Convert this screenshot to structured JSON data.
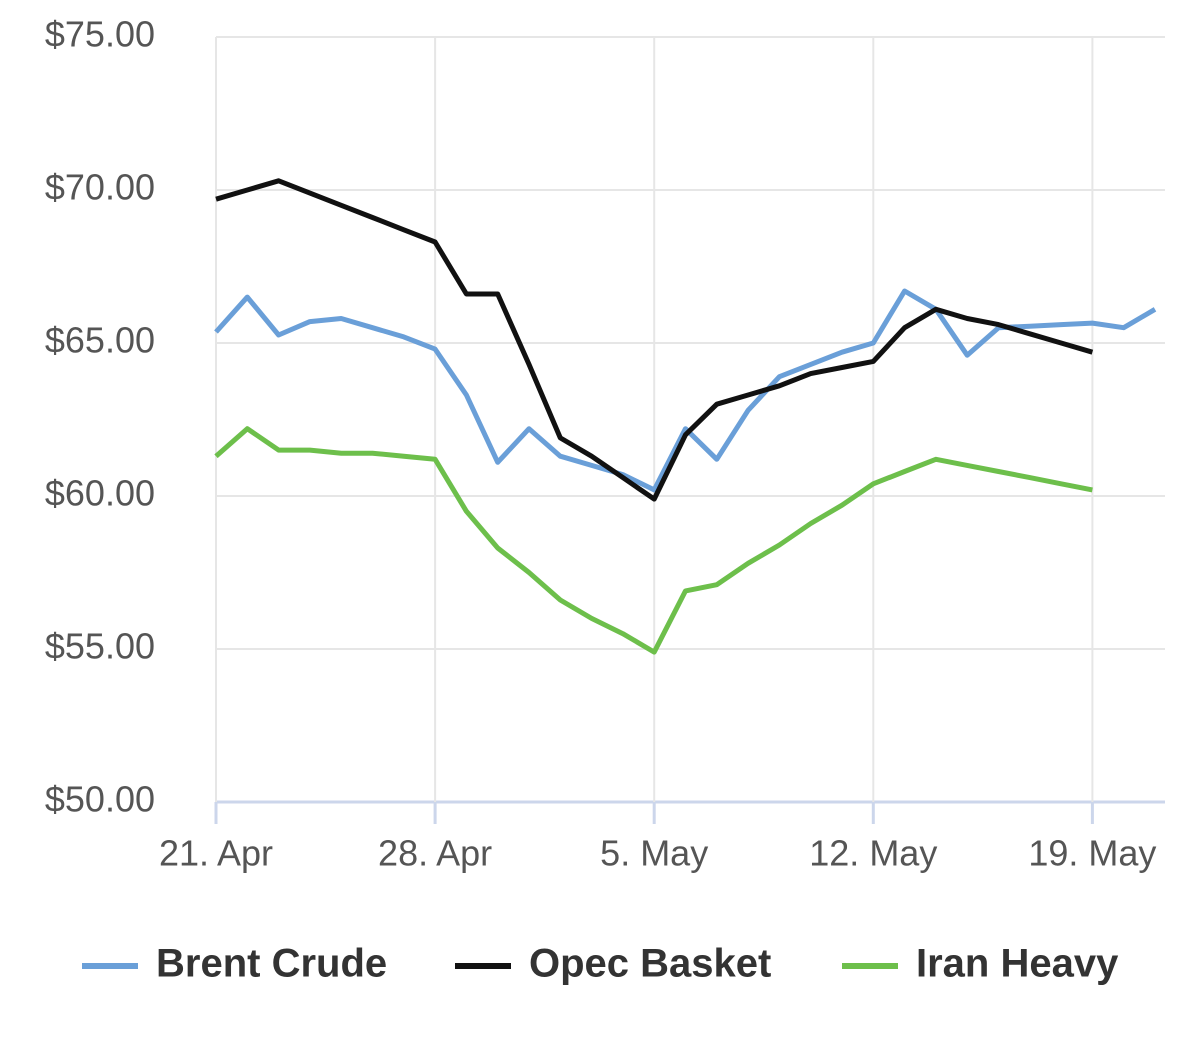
{
  "chart_data": {
    "type": "line",
    "categories": [
      "21. Apr",
      null,
      null,
      null,
      null,
      null,
      null,
      "28. Apr",
      null,
      null,
      null,
      null,
      null,
      null,
      "5. May",
      null,
      null,
      null,
      null,
      null,
      null,
      "12. May",
      null,
      null,
      null,
      null,
      null,
      null,
      "19. May",
      null,
      null
    ],
    "series": [
      {
        "name": "Brent Crude",
        "color": "#6a9fd8",
        "values": [
          65.36,
          66.5,
          65.26,
          65.7,
          65.8,
          65.5,
          65.2,
          64.8,
          63.3,
          61.1,
          62.2,
          61.3,
          61.0,
          60.7,
          60.2,
          62.2,
          61.2,
          62.8,
          63.9,
          64.3,
          64.7,
          65.0,
          66.7,
          66.1,
          64.6,
          65.5,
          65.55,
          65.6,
          65.65,
          65.5,
          66.1
        ]
      },
      {
        "name": "Opec Basket",
        "color": "#111111",
        "values": [
          69.7,
          70.0,
          70.3,
          69.9,
          69.5,
          69.1,
          68.7,
          68.3,
          66.6,
          66.6,
          64.3,
          61.9,
          61.3,
          60.6,
          59.9,
          62.0,
          63.0,
          63.3,
          63.6,
          64.0,
          64.2,
          64.4,
          65.5,
          66.1,
          65.8,
          65.6,
          65.3,
          65.0,
          64.7,
          null,
          null
        ]
      },
      {
        "name": "Iran Heavy",
        "color": "#6dbf4b",
        "values": [
          61.3,
          62.2,
          61.5,
          61.5,
          61.4,
          61.4,
          61.3,
          61.2,
          59.5,
          58.3,
          57.5,
          56.6,
          56.0,
          55.5,
          54.9,
          56.9,
          57.1,
          57.8,
          58.4,
          59.1,
          59.7,
          60.4,
          60.8,
          61.2,
          61.0,
          60.8,
          60.6,
          60.4,
          60.2,
          null,
          null
        ]
      }
    ],
    "ylim": [
      50,
      75
    ],
    "yticks": [
      {
        "value": 50,
        "label": "$50.00"
      },
      {
        "value": 55,
        "label": "$55.00"
      },
      {
        "value": 60,
        "label": "$60.00"
      },
      {
        "value": 65,
        "label": "$65.00"
      },
      {
        "value": 70,
        "label": "$70.00"
      },
      {
        "value": 75,
        "label": "$75.00"
      }
    ],
    "grid": true,
    "legend": "bottom"
  }
}
